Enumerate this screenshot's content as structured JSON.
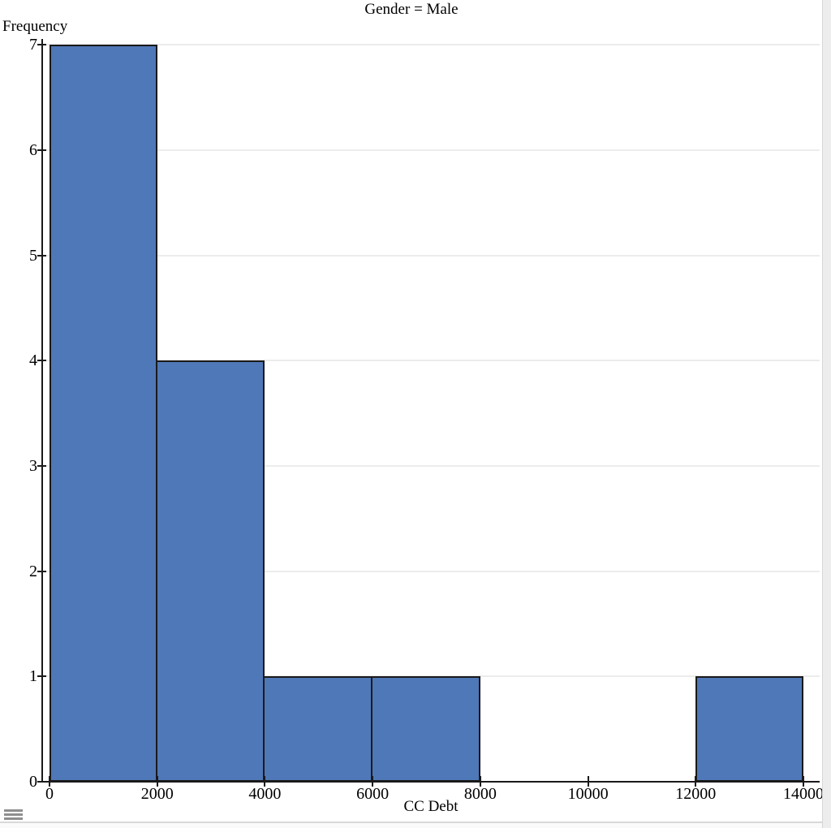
{
  "chart_data": {
    "type": "bar",
    "subtype": "histogram",
    "title": "Gender = Male",
    "xlabel": "CC Debt",
    "ylabel": "Frequency",
    "bins": [
      {
        "x0": 0,
        "x1": 2000,
        "count": 7
      },
      {
        "x0": 2000,
        "x1": 4000,
        "count": 4
      },
      {
        "x0": 4000,
        "x1": 6000,
        "count": 1
      },
      {
        "x0": 6000,
        "x1": 8000,
        "count": 1
      },
      {
        "x0": 12000,
        "x1": 14000,
        "count": 1
      }
    ],
    "x_ticks": [
      0,
      2000,
      4000,
      6000,
      8000,
      10000,
      12000,
      14000
    ],
    "y_ticks": [
      0,
      1,
      2,
      3,
      4,
      5,
      6,
      7
    ],
    "xlim": [
      0,
      14000
    ],
    "ylim": [
      0,
      7
    ],
    "grid": "horizontal",
    "legend": null,
    "colors": {
      "bar_fill": "#4f78b8",
      "bar_edge": "#1a1a1a",
      "grid_line": "#ececec",
      "axis_line": "#1a1a1a",
      "text": "#000000"
    }
  },
  "page": {
    "menu_icon": "hamburger-menu"
  }
}
